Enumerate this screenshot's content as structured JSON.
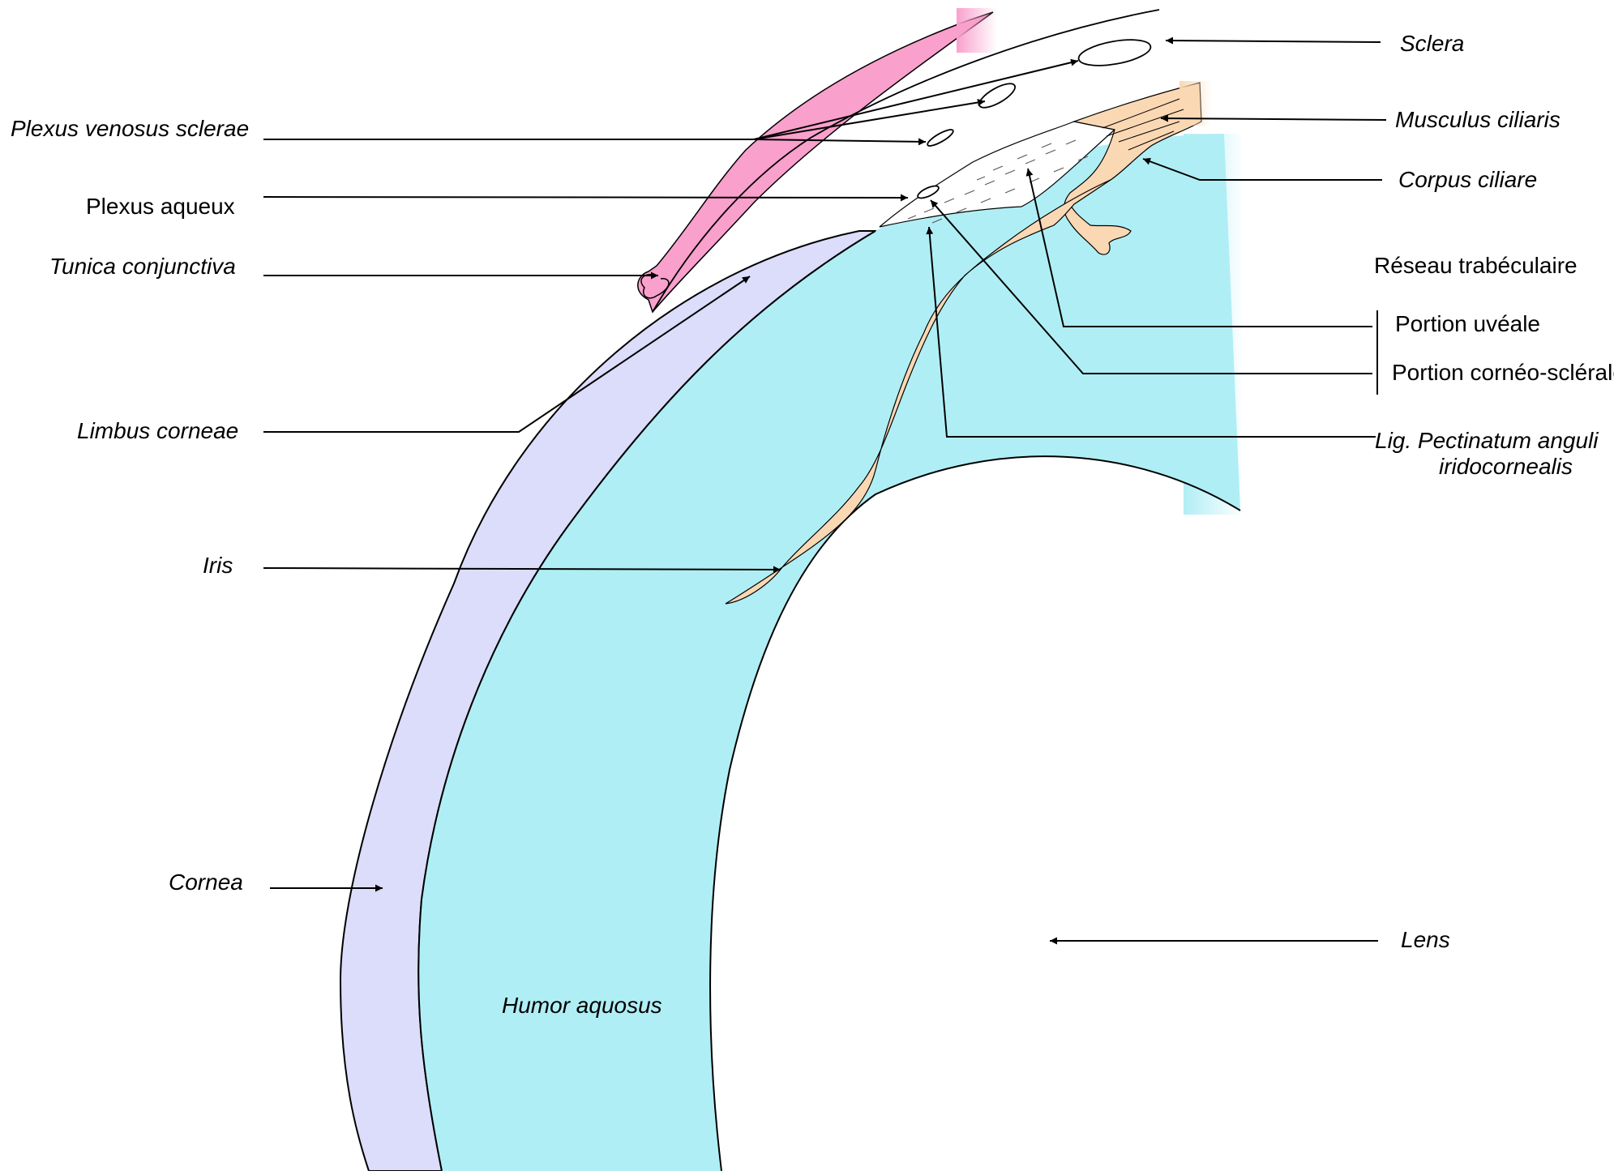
{
  "colors": {
    "sclera": "#ffffff",
    "conjunctiva": "#f9a0cc",
    "cornea": "#dcdcfb",
    "aqueous": "#b0eef5",
    "iris": "#fbd8b4",
    "outline": "#000000"
  },
  "labels": {
    "sclera": "Sclera",
    "plexus_venosus": "Plexus venosus sclerae",
    "musculus_ciliaris": "Musculus ciliaris",
    "corpus_ciliare": "Corpus ciliare",
    "plexus_aqueux": "Plexus aqueux",
    "tunica_conjunctiva": "Tunica conjunctiva",
    "reseau_trabeculaire": "Réseau trabéculaire",
    "portion_uveale": "Portion uvéale",
    "portion_corneo_sclerale": "Portion cornéo-sclérale",
    "limbus_corneae": "Limbus corneae",
    "lig_pectinatum_line1": "Lig. Pectinatum anguli",
    "lig_pectinatum_line2": "iridocornealis",
    "iris": "Iris",
    "cornea": "Cornea",
    "lens": "Lens",
    "humor_aquosus": "Humor aquosus"
  }
}
